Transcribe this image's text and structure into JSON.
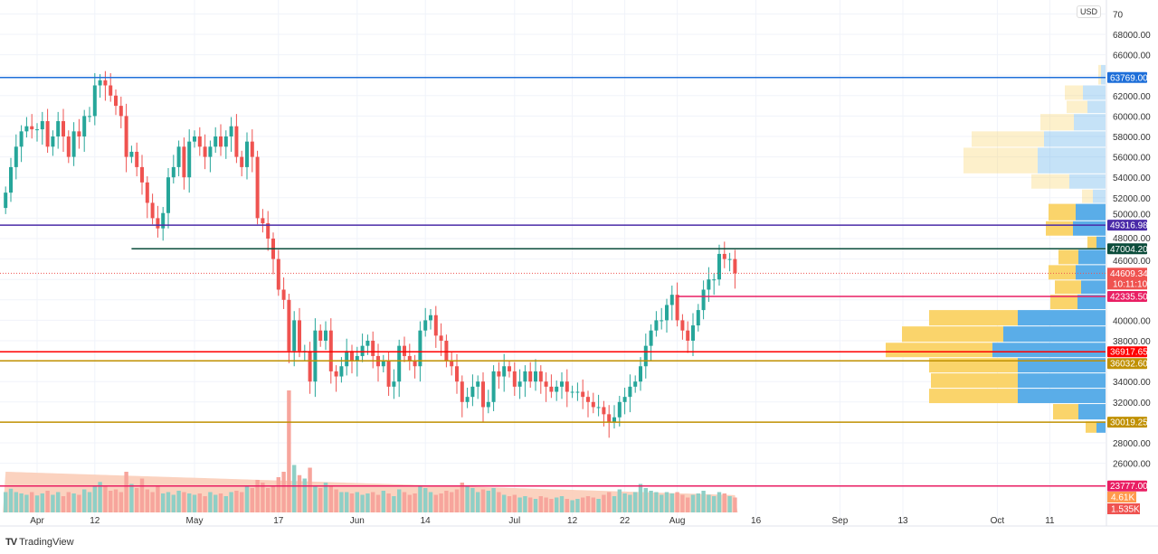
{
  "currency_badge": "USD",
  "logo_text": "TradingView",
  "price_axis": {
    "ticks": [
      68000,
      66000,
      62000,
      60000,
      58000,
      56000,
      54000,
      52000,
      50000,
      48000,
      46000,
      40000,
      38000,
      34000,
      32000,
      28000,
      26000
    ],
    "tick_labels": [
      "68000.00",
      "66000.00",
      "62000.00",
      "60000.00",
      "58000.00",
      "56000.00",
      "54000.00",
      "52000.00",
      "50000.00",
      "48000.00",
      "46000.00",
      "40000.00",
      "38000.00",
      "34000.00",
      "32000.00",
      "28000.00",
      "26000.00"
    ],
    "top_partial_label": "70"
  },
  "time_axis": [
    {
      "label": "Apr",
      "day": 6
    },
    {
      "label": "12",
      "day": 17
    },
    {
      "label": "May",
      "day": 36
    },
    {
      "label": "17",
      "day": 52
    },
    {
      "label": "Jun",
      "day": 67
    },
    {
      "label": "14",
      "day": 80
    },
    {
      "label": "Jul",
      "day": 97
    },
    {
      "label": "12",
      "day": 108
    },
    {
      "label": "22",
      "day": 118
    },
    {
      "label": "Aug",
      "day": 128
    },
    {
      "label": "16",
      "day": 143
    },
    {
      "label": "Sep",
      "day": 159
    },
    {
      "label": "13",
      "day": 171
    },
    {
      "label": "Oct",
      "day": 189
    },
    {
      "label": "11",
      "day": 199
    }
  ],
  "levels": [
    {
      "price": 63769.0,
      "label": "63769.00",
      "color": "#1e6fd9",
      "from_day": -1
    },
    {
      "price": 49316.98,
      "label": "49316.98",
      "color": "#4a2aa8",
      "from_day": -1
    },
    {
      "price": 47004.2,
      "label": "47004.20",
      "color": "#0b4d3b",
      "from_day": 24
    },
    {
      "price": 42335.5,
      "label": "42335.50",
      "color": "#e91e63",
      "from_day": 128
    },
    {
      "price": 36917.65,
      "label": "36917.65",
      "color": "#ff0000",
      "from_day": -1
    },
    {
      "price": 36032.6,
      "label": "36032.60",
      "color": "#c09000",
      "from_day": -1
    },
    {
      "price": 30019.25,
      "label": "30019.25",
      "color": "#c09000",
      "from_day": -1
    },
    {
      "price": 23777.0,
      "label": "23777.00",
      "color": "#e91e63",
      "from_day": -1
    }
  ],
  "current_price": {
    "price": 44609.34,
    "label": "44609.34",
    "countdown": "10:11:10",
    "color": "#ef5350"
  },
  "volume_tags": [
    {
      "label": "4.61K",
      "color": "#ff9a4d"
    },
    {
      "label": "1.535K",
      "color": "#ef5350"
    }
  ],
  "colors": {
    "up": "#26a69a",
    "down": "#ef5350",
    "vol_up": "#8fcfc6",
    "vol_down": "#f7a59c",
    "vol_ma": "#fbcdb8",
    "profile_up": "#5aade8",
    "profile_down": "#fad46b"
  },
  "chart_data": {
    "type": "candlestick",
    "symbol_currency": "USD",
    "start_date": "2021-03-26",
    "closes_thousands": [
      52.5,
      55,
      57,
      58.5,
      59,
      58.7,
      58.7,
      59.5,
      57,
      58,
      59.5,
      58,
      56,
      58.5,
      58,
      60,
      60,
      63,
      63.5,
      63,
      62,
      61,
      60,
      56,
      56.5,
      55,
      53.5,
      51.5,
      50,
      49,
      50.5,
      54,
      55,
      57,
      54,
      57.5,
      58,
      57,
      56,
      57,
      58,
      57,
      58,
      59,
      56,
      55,
      57.5,
      56,
      50,
      49.5,
      48,
      46,
      43,
      42,
      37,
      40,
      37,
      37,
      34,
      39,
      38,
      39,
      35,
      34.5,
      35.5,
      37,
      36,
      36.5,
      37.5,
      38,
      36.5,
      35.5,
      36,
      33.5,
      34,
      37.5,
      36.5,
      36,
      35.5,
      39,
      40,
      40.5,
      38.5,
      38,
      36,
      35.5,
      34,
      32,
      32.5,
      33.5,
      34,
      31.5,
      32,
      35,
      34.5,
      35.5,
      35,
      33.5,
      34,
      35,
      34,
      35,
      34,
      33.5,
      33,
      33.5,
      34,
      33,
      33,
      33,
      32.5,
      32,
      31.5,
      31.5,
      30.8,
      30,
      30.5,
      32,
      32.5,
      33.5,
      34,
      35.5,
      37.5,
      39,
      40,
      40,
      41.5,
      42.5,
      40,
      39,
      38,
      39.5,
      41,
      43,
      44,
      44,
      46.5,
      46,
      46,
      44.6
    ],
    "volumes_rel": [
      30,
      35,
      30,
      28,
      26,
      30,
      25,
      28,
      32,
      26,
      30,
      24,
      30,
      28,
      26,
      34,
      30,
      40,
      45,
      38,
      32,
      34,
      30,
      60,
      42,
      36,
      50,
      34,
      30,
      40,
      28,
      30,
      26,
      32,
      30,
      28,
      26,
      28,
      24,
      30,
      26,
      28,
      24,
      30,
      32,
      30,
      40,
      36,
      48,
      44,
      36,
      38,
      52,
      60,
      180,
      70,
      55,
      50,
      66,
      40,
      36,
      44,
      38,
      34,
      30,
      30,
      28,
      30,
      26,
      28,
      30,
      26,
      32,
      28,
      24,
      34,
      30,
      26,
      28,
      40,
      36,
      30,
      26,
      28,
      32,
      30,
      34,
      44,
      40,
      36,
      30,
      34,
      32,
      36,
      30,
      26,
      24,
      26,
      22,
      24,
      22,
      20,
      24,
      22,
      20,
      22,
      24,
      20,
      18,
      20,
      22,
      24,
      22,
      20,
      26,
      30,
      24,
      34,
      28,
      26,
      30,
      42,
      36,
      32,
      30,
      26,
      30,
      28,
      30,
      26,
      22,
      26,
      28,
      32,
      26,
      24,
      30,
      28,
      24,
      22
    ],
    "volume_profile": [
      {
        "low": 63000,
        "high": 65000,
        "up": 5,
        "down": 8,
        "faded": true
      },
      {
        "low": 61500,
        "high": 63000,
        "up": 25,
        "down": 45,
        "faded": true
      },
      {
        "low": 60200,
        "high": 61500,
        "up": 20,
        "down": 43,
        "faded": true
      },
      {
        "low": 58500,
        "high": 60200,
        "up": 35,
        "down": 72,
        "faded": true
      },
      {
        "low": 56900,
        "high": 58500,
        "up": 68,
        "down": 148,
        "faded": true
      },
      {
        "low": 54300,
        "high": 56900,
        "up": 75,
        "down": 157,
        "faded": true
      },
      {
        "low": 52800,
        "high": 54300,
        "up": 40,
        "down": 82,
        "faded": true
      },
      {
        "low": 51400,
        "high": 52800,
        "up": 14,
        "down": 26,
        "faded": true
      },
      {
        "low": 49700,
        "high": 51400,
        "up": 33,
        "down": 63
      },
      {
        "low": 48200,
        "high": 49700,
        "up": 36,
        "down": 66
      },
      {
        "low": 47000,
        "high": 48200,
        "up": 10,
        "down": 20
      },
      {
        "low": 45400,
        "high": 46900,
        "up": 30,
        "down": 52
      },
      {
        "low": 43900,
        "high": 45400,
        "up": 33,
        "down": 63
      },
      {
        "low": 42500,
        "high": 43900,
        "up": 27,
        "down": 56
      },
      {
        "low": 41000,
        "high": 42500,
        "up": 31,
        "down": 61
      },
      {
        "low": 39400,
        "high": 41000,
        "up": 97,
        "down": 195
      },
      {
        "low": 37800,
        "high": 39400,
        "up": 113,
        "down": 225
      },
      {
        "low": 36300,
        "high": 37800,
        "up": 125,
        "down": 243
      },
      {
        "low": 34800,
        "high": 36300,
        "up": 97,
        "down": 195
      },
      {
        "low": 33300,
        "high": 34800,
        "up": 97,
        "down": 193
      },
      {
        "low": 31800,
        "high": 33300,
        "up": 97,
        "down": 195
      },
      {
        "low": 30200,
        "high": 31800,
        "up": 30,
        "down": 58
      },
      {
        "low": 28900,
        "high": 30100,
        "up": 10,
        "down": 22
      }
    ]
  }
}
